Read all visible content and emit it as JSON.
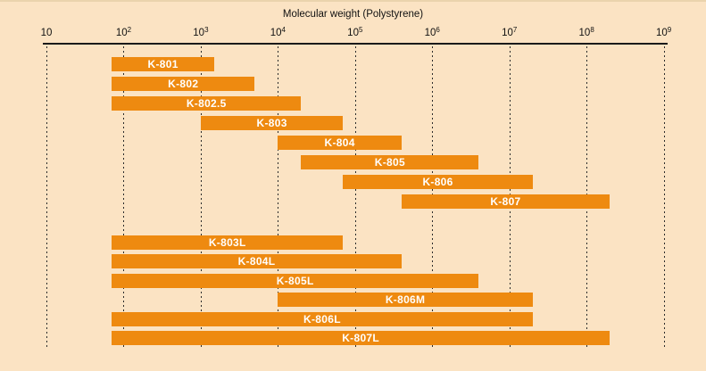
{
  "chart_data": {
    "type": "bar",
    "subtype": "horizontal-range-bars",
    "title": "Molecular weight (Polystyrene)",
    "x_axis": {
      "scale": "log10",
      "range": [
        10,
        1000000000
      ],
      "ticks": [
        {
          "base": "10",
          "exp": ""
        },
        {
          "base": "10",
          "exp": "2"
        },
        {
          "base": "10",
          "exp": "3"
        },
        {
          "base": "10",
          "exp": "4"
        },
        {
          "base": "10",
          "exp": "5"
        },
        {
          "base": "10",
          "exp": "6"
        },
        {
          "base": "10",
          "exp": "7"
        },
        {
          "base": "10",
          "exp": "8"
        },
        {
          "base": "10",
          "exp": "9"
        }
      ]
    },
    "bars": [
      {
        "label": "K-801",
        "mw_min": 70,
        "mw_max": 1500,
        "group": "single"
      },
      {
        "label": "K-802",
        "mw_min": 70,
        "mw_max": 5000,
        "group": "single"
      },
      {
        "label": "K-802.5",
        "mw_min": 70,
        "mw_max": 20000,
        "group": "single"
      },
      {
        "label": "K-803",
        "mw_min": 1000,
        "mw_max": 70000,
        "group": "single"
      },
      {
        "label": "K-804",
        "mw_min": 10000,
        "mw_max": 400000,
        "group": "single"
      },
      {
        "label": "K-805",
        "mw_min": 20000,
        "mw_max": 4000000,
        "group": "single"
      },
      {
        "label": "K-806",
        "mw_min": 70000,
        "mw_max": 20000000,
        "group": "single"
      },
      {
        "label": "K-807",
        "mw_min": 400000,
        "mw_max": 200000000,
        "group": "single"
      },
      {
        "label": "K-803L",
        "mw_min": 70,
        "mw_max": 70000,
        "group": "linear"
      },
      {
        "label": "K-804L",
        "mw_min": 70,
        "mw_max": 400000,
        "group": "linear"
      },
      {
        "label": "K-805L",
        "mw_min": 70,
        "mw_max": 4000000,
        "group": "linear"
      },
      {
        "label": "K-806M",
        "mw_min": 10000,
        "mw_max": 20000000,
        "group": "linear"
      },
      {
        "label": "K-806L",
        "mw_min": 70,
        "mw_max": 20000000,
        "group": "linear"
      },
      {
        "label": "K-807L",
        "mw_min": 70,
        "mw_max": 200000000,
        "group": "linear"
      }
    ],
    "colors": {
      "background": "#FBE3C3",
      "bar": "#EE8A10",
      "bar_text": "#FFFFFF",
      "axis": "#1A1A1A",
      "gridline": "#2B2B2B"
    },
    "layout_hints": {
      "gridlines": "vertical dashed at each decade",
      "legend": "none",
      "bar_labels": "centered inside bars"
    }
  }
}
